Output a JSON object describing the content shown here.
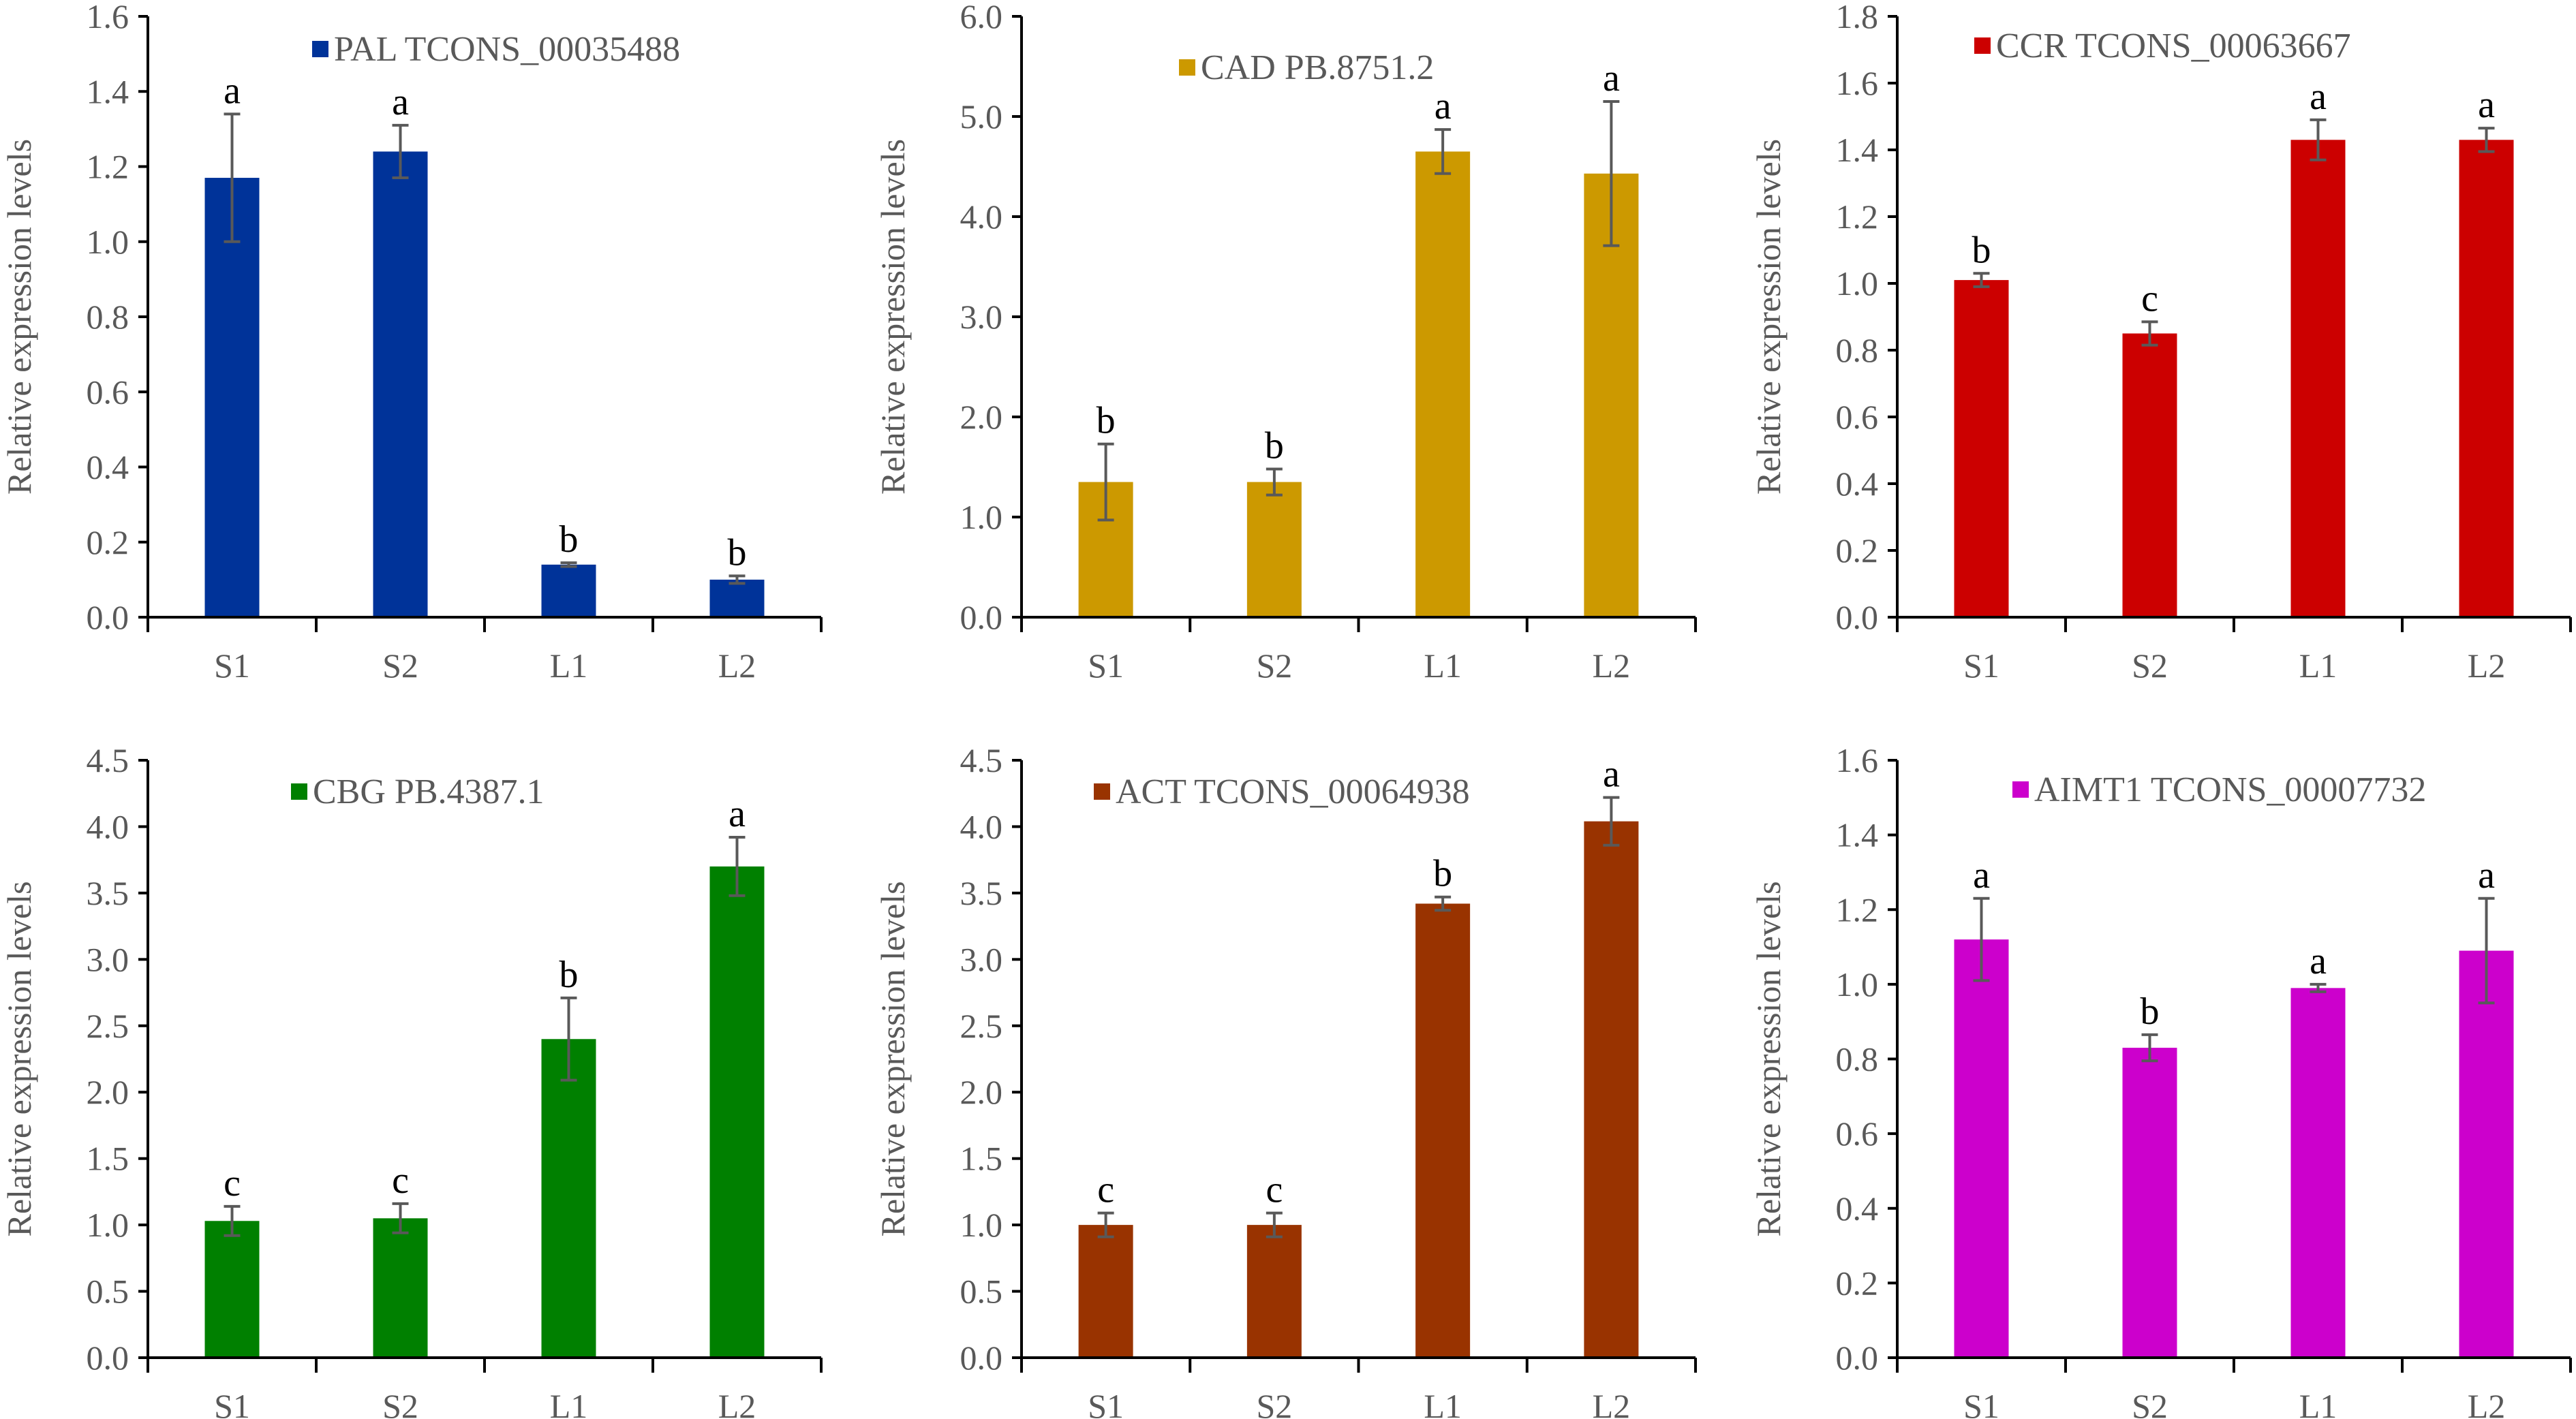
{
  "chart_data": [
    {
      "type": "bar",
      "legend": "PAL TCONS_00035488",
      "color": "#003399",
      "ylabel": "Relative expression levels",
      "ylim": [
        0,
        1.6
      ],
      "yticks": [
        "0.0",
        "0.2",
        "0.4",
        "0.6",
        "0.8",
        "1.0",
        "1.2",
        "1.4",
        "1.6"
      ],
      "categories": [
        "S1",
        "S2",
        "L1",
        "L2"
      ],
      "values": [
        1.17,
        1.24,
        0.14,
        0.1
      ],
      "errors": [
        0.17,
        0.07,
        0.005,
        0.01
      ],
      "letters": [
        "a",
        "a",
        "b",
        "b"
      ]
    },
    {
      "type": "bar",
      "legend": "CAD PB.8751.2",
      "color": "#CC9900",
      "ylabel": "Relative expression levels",
      "ylim": [
        0,
        6
      ],
      "yticks": [
        "0.0",
        "1.0",
        "2.0",
        "3.0",
        "4.0",
        "5.0",
        "6.0"
      ],
      "categories": [
        "S1",
        "S2",
        "L1",
        "L2"
      ],
      "values": [
        1.35,
        1.35,
        4.65,
        4.43
      ],
      "errors": [
        0.38,
        0.13,
        0.22,
        0.72
      ],
      "letters": [
        "b",
        "b",
        "a",
        "a"
      ]
    },
    {
      "type": "bar",
      "legend": "CCR TCONS_00063667",
      "color": "#CC0000",
      "ylabel": "Relative expression levels",
      "ylim": [
        0,
        1.8
      ],
      "yticks": [
        "0.0",
        "0.2",
        "0.4",
        "0.6",
        "0.8",
        "1.0",
        "1.2",
        "1.4",
        "1.6",
        "1.8"
      ],
      "categories": [
        "S1",
        "S2",
        "L1",
        "L2"
      ],
      "values": [
        1.01,
        0.85,
        1.43,
        1.43
      ],
      "errors": [
        0.02,
        0.035,
        0.06,
        0.035
      ],
      "letters": [
        "b",
        "c",
        "a",
        "a"
      ]
    },
    {
      "type": "bar",
      "legend": "CBG PB.4387.1",
      "color": "#008000",
      "ylabel": "Relative expression levels",
      "ylim": [
        0,
        4.5
      ],
      "yticks": [
        "0.0",
        "0.5",
        "1.0",
        "1.5",
        "2.0",
        "2.5",
        "3.0",
        "3.5",
        "4.0",
        "4.5"
      ],
      "categories": [
        "S1",
        "S2",
        "L1",
        "L2"
      ],
      "values": [
        1.03,
        1.05,
        2.4,
        3.7
      ],
      "errors": [
        0.11,
        0.11,
        0.31,
        0.22
      ],
      "letters": [
        "c",
        "c",
        "b",
        "a"
      ]
    },
    {
      "type": "bar",
      "legend": "ACT TCONS_00064938",
      "color": "#993300",
      "ylabel": "Relative expression levels",
      "ylim": [
        0,
        4.5
      ],
      "yticks": [
        "0.0",
        "0.5",
        "1.0",
        "1.5",
        "2.0",
        "2.5",
        "3.0",
        "3.5",
        "4.0",
        "4.5"
      ],
      "categories": [
        "S1",
        "S2",
        "L1",
        "L2"
      ],
      "values": [
        1.0,
        1.0,
        3.42,
        4.04
      ],
      "errors": [
        0.09,
        0.09,
        0.05,
        0.18
      ],
      "letters": [
        "c",
        "c",
        "b",
        "a"
      ]
    },
    {
      "type": "bar",
      "legend": "AIMT1 TCONS_00007732",
      "color": "#CC00CC",
      "ylabel": "Relative expression levels",
      "ylim": [
        0,
        1.6
      ],
      "yticks": [
        "0.0",
        "0.2",
        "0.4",
        "0.6",
        "0.8",
        "1.0",
        "1.2",
        "1.4",
        "1.6"
      ],
      "categories": [
        "S1",
        "S2",
        "L1",
        "L2"
      ],
      "values": [
        1.12,
        0.83,
        0.99,
        1.09
      ],
      "errors": [
        0.11,
        0.035,
        0.01,
        0.14
      ],
      "letters": [
        "a",
        "b",
        "a",
        "a"
      ]
    }
  ]
}
